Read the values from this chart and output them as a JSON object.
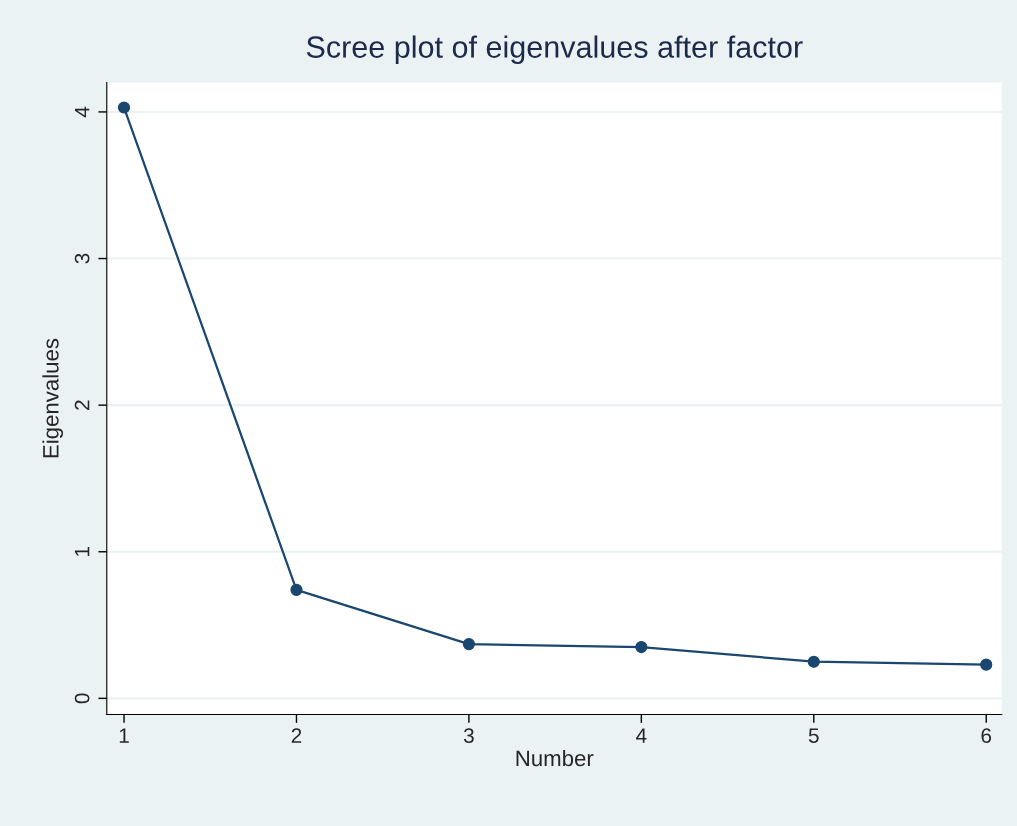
{
  "chart_data": {
    "type": "line",
    "title": "Scree plot of eigenvalues after factor",
    "xlabel": "Number",
    "ylabel": "Eigenvalues",
    "x": [
      1,
      2,
      3,
      4,
      5,
      6
    ],
    "series": [
      {
        "color": "#1a476f",
        "values": [
          4.03,
          0.74,
          0.37,
          0.35,
          0.25,
          0.23
        ]
      }
    ],
    "xlim": [
      0.9,
      6.09
    ],
    "xticks": [
      1,
      2,
      3,
      4,
      5,
      6
    ],
    "ylim": [
      -0.11,
      4.2
    ],
    "yticks": [
      0,
      1,
      2,
      3,
      4
    ],
    "grid": "y",
    "marker": "circle",
    "line_style": "solid"
  }
}
